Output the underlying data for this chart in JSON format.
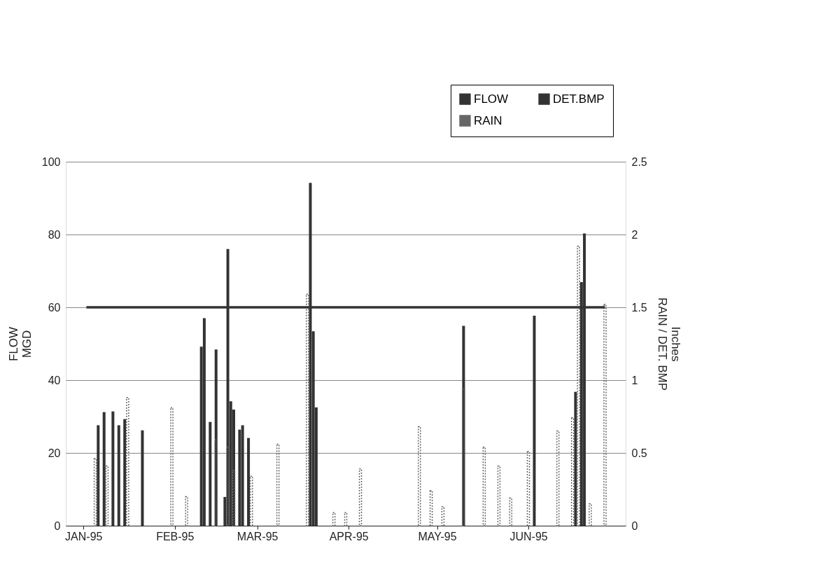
{
  "chart_data": {
    "type": "bar",
    "ylabel": "FLOW\nMGD",
    "y2label": "Inches\nRAIN / DET. BMP",
    "xlim": [
      "1994-12-26",
      "1995-07-04"
    ],
    "xticks": [
      {
        "value": "1995-01-01",
        "label": "JAN-95"
      },
      {
        "value": "1995-02-01",
        "label": "FEB-95"
      },
      {
        "value": "1995-03-01",
        "label": "MAR-95"
      },
      {
        "value": "1995-04-01",
        "label": "APR-95"
      },
      {
        "value": "1995-05-01",
        "label": "MAY-95"
      },
      {
        "value": "1995-06-01",
        "label": "JUN-95"
      }
    ],
    "ylim": [
      0,
      100
    ],
    "yticks": [
      0,
      20,
      40,
      60,
      80,
      100
    ],
    "y2lim": [
      0,
      2.5
    ],
    "y2ticks": [
      0,
      0.5,
      1,
      1.5,
      2,
      2.5
    ],
    "grid": "y",
    "legend": "top right",
    "series": [
      {
        "name": "FLOW",
        "color": "#333333",
        "x": [
          "1995-01-06",
          "1995-01-08",
          "1995-01-11",
          "1995-01-13",
          "1995-01-15",
          "1995-01-21",
          "1995-02-10",
          "1995-02-11",
          "1995-02-13",
          "1995-02-15",
          "1995-02-18",
          "1995-02-19",
          "1995-02-20",
          "1995-02-21",
          "1995-02-23",
          "1995-02-24",
          "1995-02-26",
          "1995-03-19",
          "1995-03-20",
          "1995-03-21",
          "1995-05-10",
          "1995-06-03",
          "1995-06-17",
          "1995-06-19",
          "1995-06-20"
        ],
        "values": [
          27.6,
          31.2,
          31.4,
          27.6,
          29.3,
          26.2,
          49.2,
          57,
          28.5,
          48.4,
          7.9,
          76,
          34.2,
          31.9,
          26.4,
          27.6,
          24.1,
          94.2,
          53.4,
          32.5,
          54.9,
          57.7,
          36.8,
          66.9,
          80.3
        ]
      },
      {
        "name": "RAIN",
        "axis": "y2",
        "color": "#666666",
        "line_style": "dotted",
        "x": [
          "1995-01-05",
          "1995-01-09",
          "1995-01-16",
          "1995-01-31",
          "1995-02-05",
          "1995-02-15",
          "1995-02-19",
          "1995-02-21",
          "1995-02-27",
          "1995-03-08",
          "1995-03-18",
          "1995-03-27",
          "1995-03-31",
          "1995-04-05",
          "1995-04-25",
          "1995-04-29",
          "1995-05-03",
          "1995-05-10",
          "1995-05-17",
          "1995-05-22",
          "1995-05-26",
          "1995-06-01",
          "1995-06-11",
          "1995-06-16",
          "1995-06-18",
          "1995-06-22",
          "1995-06-27"
        ],
        "values": [
          0.46,
          0.41,
          0.88,
          0.81,
          0.2,
          0.59,
          0.54,
          0.38,
          0.34,
          0.56,
          1.59,
          0.09,
          0.09,
          0.39,
          0.68,
          0.24,
          0.13,
          0.94,
          0.54,
          0.41,
          0.19,
          0.51,
          0.65,
          0.74,
          1.92,
          0.15,
          1.52
        ]
      },
      {
        "name": "DET.BMP",
        "type": "line",
        "axis": "y2",
        "color": "#333333",
        "line_style": "solid",
        "x": [
          "1995-01-02",
          "1995-06-27"
        ],
        "values": [
          1.5,
          1.5
        ]
      }
    ]
  }
}
